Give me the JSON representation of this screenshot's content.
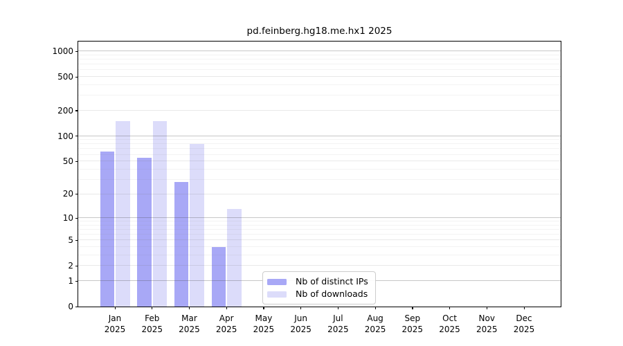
{
  "title": "pd.feinberg.hg18.me.hx1 2025",
  "chart_data": {
    "type": "bar",
    "title": "pd.feinberg.hg18.me.hx1 2025",
    "months": [
      "Jan",
      "Feb",
      "Mar",
      "Apr",
      "May",
      "Jun",
      "Jul",
      "Aug",
      "Sep",
      "Oct",
      "Nov",
      "Dec"
    ],
    "year": "2025",
    "series": [
      {
        "name": "Nb of distinct IPs",
        "color": "#a8a8f6",
        "values": [
          66,
          55,
          28,
          4,
          null,
          null,
          null,
          null,
          null,
          null,
          null,
          null
        ]
      },
      {
        "name": "Nb of downloads",
        "color": "#dcdcfa",
        "values": [
          150,
          150,
          80,
          13,
          null,
          null,
          null,
          null,
          null,
          null,
          null,
          null
        ]
      }
    ],
    "yscale": "log1p",
    "ylim": [
      0,
      1000
    ],
    "yticks": [
      0,
      1,
      2,
      5,
      10,
      20,
      50,
      100,
      200,
      500,
      1000
    ],
    "yticks_minor": [
      3,
      4,
      6,
      7,
      8,
      9,
      30,
      40,
      60,
      70,
      80,
      90,
      300,
      400,
      600,
      700,
      800,
      900
    ],
    "grid": "on",
    "legend_position": "lower-center",
    "frame_color": "#000000",
    "grid_decade_color": "#bdbdbd",
    "grid_major_color": "#e6e6e6",
    "grid_minor_color": "#f2f2f2"
  }
}
